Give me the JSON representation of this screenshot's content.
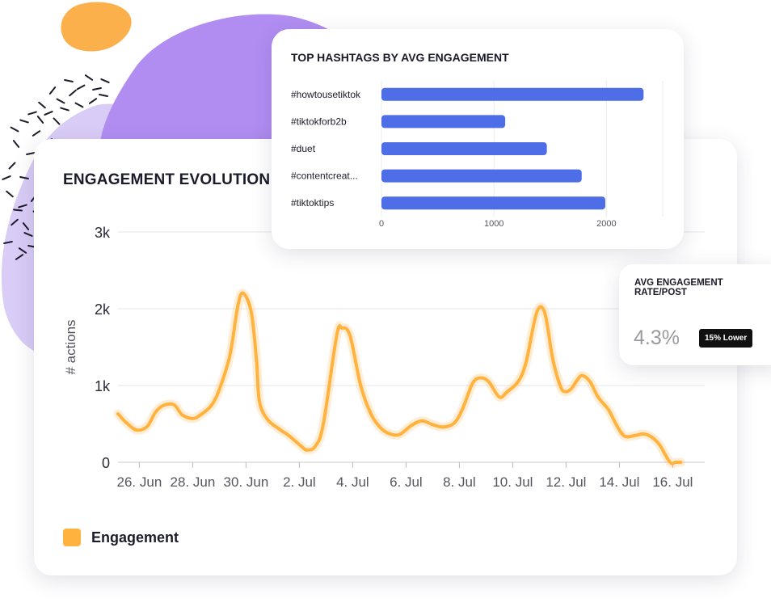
{
  "colors": {
    "engagement": "#ffb23e",
    "bars": "#4e6ee8",
    "purple_blob": "#b18df2",
    "lavender_blob": "#d9ccf6",
    "orange_blob": "#fbb04c",
    "badge_bg": "#111111"
  },
  "main_card": {
    "title": "ENGAGEMENT EVOLUTION"
  },
  "hashtag_card": {
    "title": "TOP HASHTAGS BY AVG ENGAGEMENT"
  },
  "avg_card": {
    "title": "AVG ENGAGEMENT RATE/POST",
    "value": "4.3%",
    "badge": "15% Lower"
  },
  "chart_data": [
    {
      "type": "line",
      "title": "ENGAGEMENT EVOLUTION",
      "ylabel": "# actions",
      "xlabel": "",
      "ylim": [
        0,
        3000
      ],
      "yticks": [
        0,
        1000,
        2000,
        3000
      ],
      "ytick_labels": [
        "0",
        "1k",
        "2k",
        "3k"
      ],
      "xlim": [
        25.2,
        47.2
      ],
      "xticks": [
        26,
        28,
        30,
        32,
        34,
        36,
        38,
        40,
        42,
        44,
        46
      ],
      "xtick_labels": [
        "26. Jun",
        "28. Jun",
        "30. Jun",
        "2. Jul",
        "4. Jul",
        "6. Jul",
        "8. Jul",
        "10. Jul",
        "12. Jul",
        "14. Jul",
        "16. Jul"
      ],
      "grid": "horizontal",
      "legend_position": "bottom-left",
      "series": [
        {
          "name": "Engagement",
          "x": [
            25.2,
            25.5,
            25.9,
            26.3,
            26.6,
            26.9,
            27.3,
            27.6,
            28.0,
            28.3,
            28.7,
            29.0,
            29.4,
            29.7,
            29.9,
            30.2,
            30.4,
            30.5,
            30.8,
            31.3,
            31.6,
            32.1,
            32.3,
            32.6,
            32.9,
            33.4,
            33.6,
            33.9,
            34.3,
            34.7,
            35.1,
            35.5,
            35.8,
            36.2,
            36.6,
            37.0,
            37.4,
            37.8,
            38.1,
            38.5,
            38.8,
            39.1,
            39.5,
            39.8,
            40.2,
            40.5,
            40.9,
            41.2,
            41.5,
            41.8,
            42.0,
            42.2,
            42.4,
            42.6,
            42.9,
            43.2,
            43.6,
            43.9,
            44.2,
            44.6,
            44.9,
            45.2,
            45.5,
            45.9,
            46.1,
            46.3
          ],
          "values": [
            630,
            520,
            420,
            470,
            650,
            740,
            750,
            620,
            570,
            620,
            740,
            950,
            1400,
            2050,
            2200,
            1950,
            1300,
            800,
            560,
            420,
            350,
            200,
            160,
            210,
            500,
            1650,
            1750,
            1650,
            1000,
            620,
            430,
            360,
            370,
            480,
            540,
            490,
            460,
            510,
            680,
            1030,
            1100,
            1050,
            850,
            920,
            1050,
            1300,
            1950,
            1950,
            1350,
            980,
            920,
            960,
            1060,
            1130,
            1050,
            850,
            680,
            480,
            340,
            350,
            370,
            330,
            230,
            0,
            0,
            0
          ]
        }
      ]
    },
    {
      "type": "bar",
      "orientation": "horizontal",
      "title": "TOP HASHTAGS BY AVG ENGAGEMENT",
      "categories": [
        "#howtousetiktok",
        "#tiktokforb2b",
        "#duet",
        "#contentcreat...",
        "#tiktoktips"
      ],
      "values": [
        2330,
        1100,
        1470,
        1780,
        1990
      ],
      "xlim": [
        0,
        2500
      ],
      "xticks": [
        0,
        1000,
        2000
      ],
      "xtick_labels": [
        "0",
        "1000",
        "2000"
      ],
      "grid": "vertical"
    }
  ]
}
